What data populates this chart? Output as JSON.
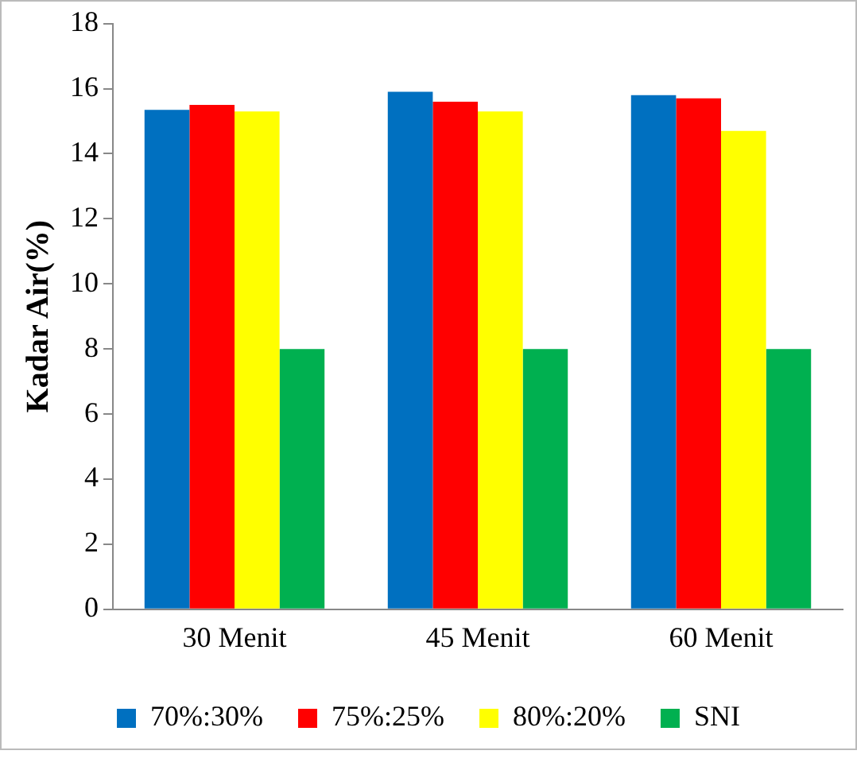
{
  "chart_data": {
    "type": "bar",
    "ylabel": "Kadar Air(%)",
    "categories": [
      "30 Menit",
      "45 Menit",
      "60 Menit"
    ],
    "series": [
      {
        "name": "70%:30%",
        "color": "#0070c0",
        "values": [
          15.35,
          15.9,
          15.8
        ]
      },
      {
        "name": "75%:25%",
        "color": "#ff0000",
        "values": [
          15.5,
          15.6,
          15.7
        ]
      },
      {
        "name": "80%:20%",
        "color": "#ffff00",
        "values": [
          15.3,
          15.3,
          14.7
        ]
      },
      {
        "name": "SNI",
        "color": "#00b050",
        "values": [
          8,
          8,
          8
        ]
      }
    ],
    "ylim": [
      0,
      18
    ],
    "yticks": [
      0,
      2,
      4,
      6,
      8,
      10,
      12,
      14,
      16,
      18
    ],
    "grid": false,
    "legend": "bottom"
  }
}
